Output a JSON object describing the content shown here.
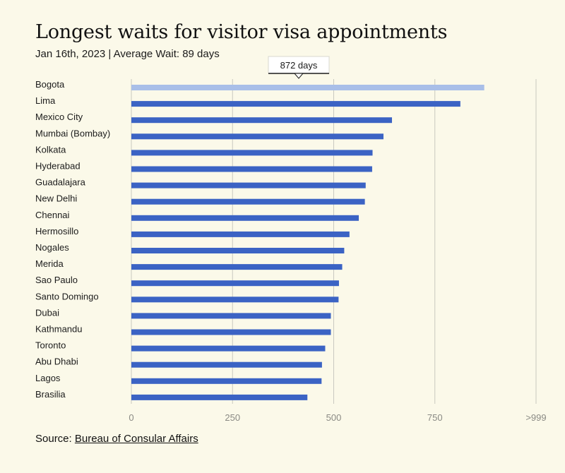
{
  "title": "Longest waits for visitor visa appointments",
  "subtitle": "Jan 16th, 2023 | Average Wait: 89 days",
  "source": {
    "label": "Source:",
    "link_text": "Bureau of Consular Affairs"
  },
  "colors": {
    "bar": "#3b63c4",
    "highlight_bar": "#a9bfe8",
    "grid": "#c9c9c0",
    "background": "#fbf9e9"
  },
  "chart_data": {
    "type": "bar",
    "orientation": "horizontal",
    "title": "Longest waits for visitor visa appointments",
    "subtitle": "Jan 16th, 2023 | Average Wait: 89 days",
    "categories": [
      "Bogota",
      "Lima",
      "Mexico City",
      "Mumbai (Bombay)",
      "Kolkata",
      "Hyderabad",
      "Guadalajara",
      "New Delhi",
      "Chennai",
      "Hermosillo",
      "Nogales",
      "Merida",
      "Sao Paulo",
      "Santo Domingo",
      "Dubai",
      "Kathmandu",
      "Toronto",
      "Abu Dhabi",
      "Lagos",
      "Brasilia"
    ],
    "values": [
      872,
      813,
      644,
      623,
      596,
      595,
      579,
      577,
      562,
      539,
      526,
      521,
      513,
      512,
      493,
      493,
      479,
      471,
      470,
      435
    ],
    "highlighted_index": 0,
    "tooltip": "872 days",
    "xlim": [
      0,
      1000
    ],
    "xticks": [
      0,
      250,
      500,
      750,
      1000
    ],
    "xtick_labels": [
      "0",
      "250",
      "500",
      "750",
      ">999"
    ],
    "grid": true
  }
}
